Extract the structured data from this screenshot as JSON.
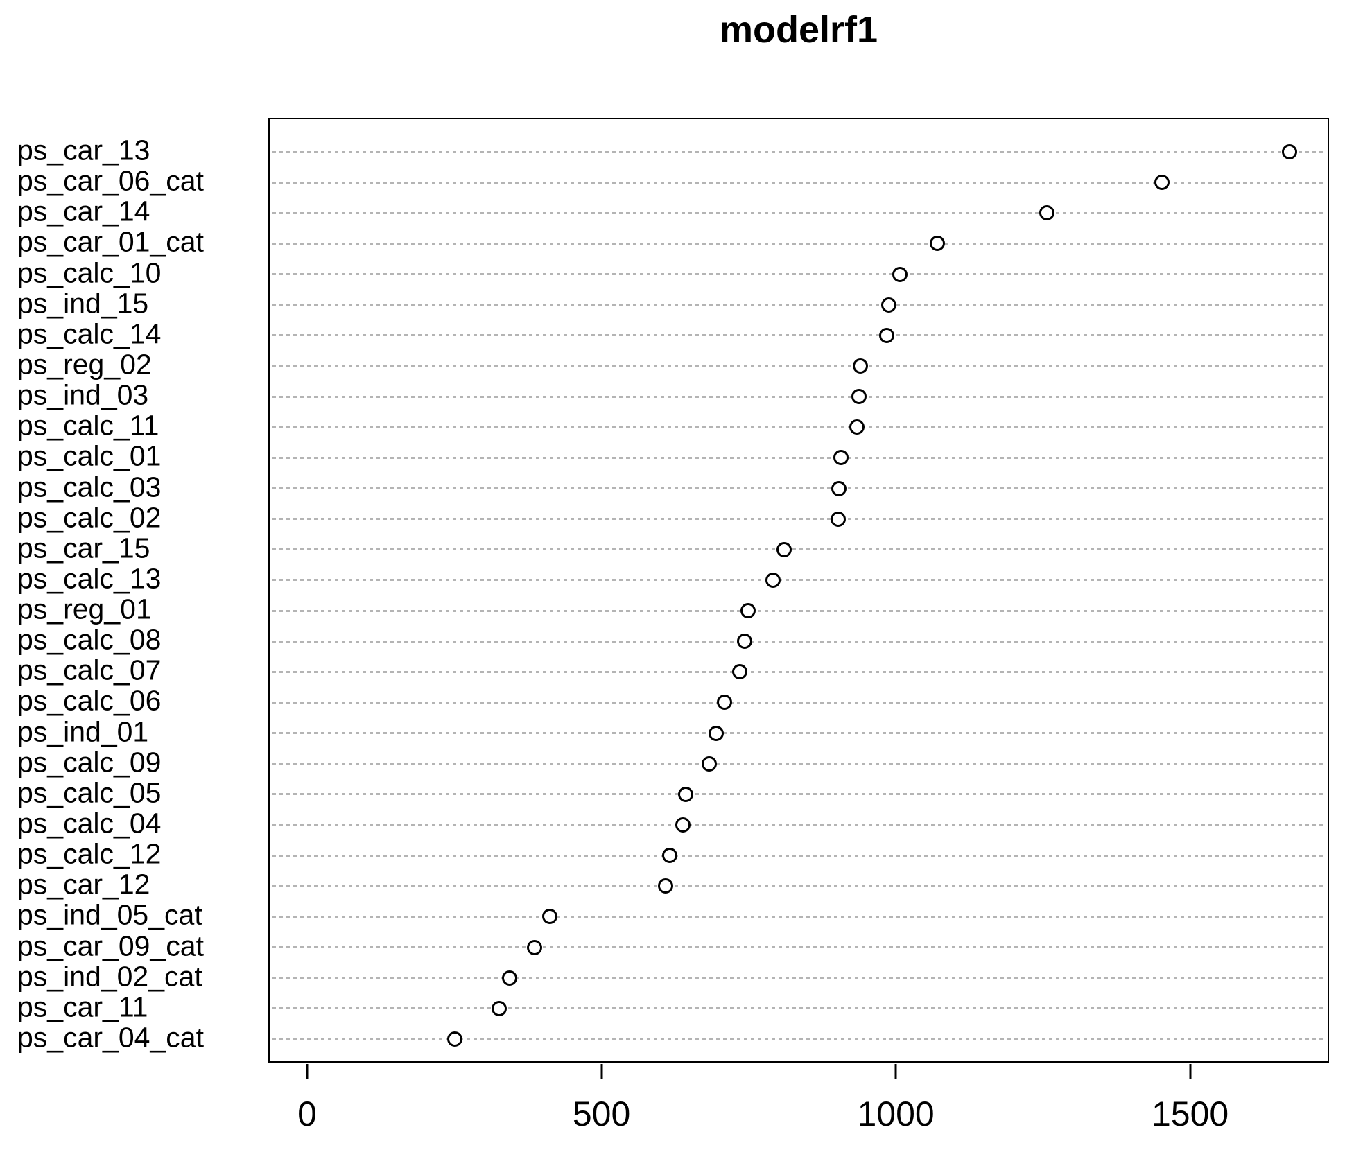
{
  "chart_data": {
    "type": "scatter",
    "subtype": "dotchart-variable-importance",
    "title": "modelrf1",
    "xlabel": "",
    "ylabel": "",
    "xlim": [
      -66,
      1736
    ],
    "x_ticks": [
      0,
      500,
      1000,
      1500
    ],
    "x_tick_labels": [
      "0",
      "500",
      "1000",
      "1500"
    ],
    "grid": "horizontal dotted lines per category",
    "legend": "none",
    "point_style": "open-circle",
    "categories": [
      "ps_car_13",
      "ps_car_06_cat",
      "ps_car_14",
      "ps_car_01_cat",
      "ps_calc_10",
      "ps_ind_15",
      "ps_calc_14",
      "ps_reg_02",
      "ps_ind_03",
      "ps_calc_11",
      "ps_calc_01",
      "ps_calc_03",
      "ps_calc_02",
      "ps_car_15",
      "ps_calc_13",
      "ps_reg_01",
      "ps_calc_08",
      "ps_calc_07",
      "ps_calc_06",
      "ps_ind_01",
      "ps_calc_09",
      "ps_calc_05",
      "ps_calc_04",
      "ps_calc_12",
      "ps_car_12",
      "ps_ind_05_cat",
      "ps_car_09_cat",
      "ps_ind_02_cat",
      "ps_car_11",
      "ps_car_04_cat"
    ],
    "values": [
      1666,
      1450,
      1254,
      1068,
      1005,
      986,
      982,
      938,
      935,
      932,
      904,
      901,
      900,
      808,
      789,
      747,
      741,
      732,
      707,
      692,
      681,
      641,
      636,
      614,
      607,
      410,
      384,
      341,
      324,
      249
    ],
    "colors": {
      "text": "#000000",
      "border": "#000000",
      "grid": "#b4b4b4",
      "point_stroke": "#000000",
      "background": "#ffffff"
    }
  }
}
